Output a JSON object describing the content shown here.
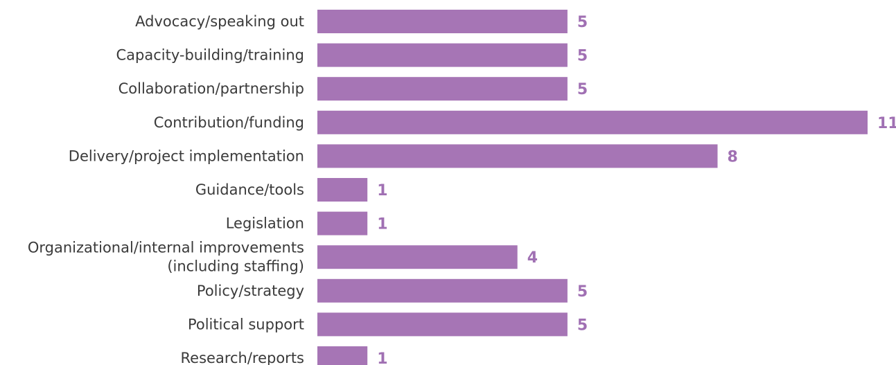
{
  "chart_data": {
    "type": "bar",
    "orientation": "horizontal",
    "title": "",
    "xlabel": "",
    "ylabel": "",
    "categories": [
      [
        "Advocacy/speaking out"
      ],
      [
        "Capacity-building/training"
      ],
      [
        "Collaboration/partnership"
      ],
      [
        "Contribution/funding"
      ],
      [
        "Delivery/project implementation"
      ],
      [
        "Guidance/tools"
      ],
      [
        "Legislation"
      ],
      [
        "Organizational/internal improvements",
        "(including staffing)"
      ],
      [
        "Policy/strategy"
      ],
      [
        "Political support"
      ],
      [
        "Research/reports"
      ]
    ],
    "values": [
      5,
      5,
      5,
      11,
      8,
      1,
      1,
      4,
      5,
      5,
      1
    ],
    "xlim": [
      0,
      11
    ],
    "grid": false,
    "legend": "none",
    "colors": {
      "bar": "#a675b5",
      "value_label": "#a070b3",
      "category_label": "#3a3a3a"
    }
  }
}
